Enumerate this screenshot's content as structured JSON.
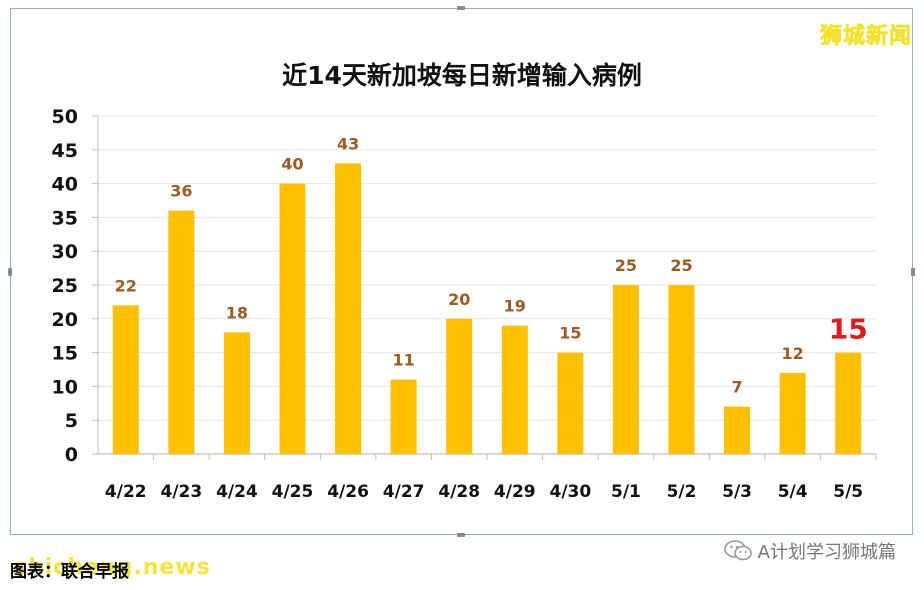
{
  "brand": "狮城新闻",
  "footer": {
    "source": "图表：联合早报",
    "watermark": "shicheng.news",
    "account": "A计划学习狮城篇",
    "account_icon": "wechat-icon"
  },
  "colors": {
    "bar": "#FFC000",
    "value_label": "#9C5B22",
    "highlight_label": "#E0191B",
    "grid": "#E6E6E6",
    "axis": "#BFBFBF",
    "frame": "#8FB7AE"
  },
  "chart_data": {
    "type": "bar",
    "title": "近14天新加坡每日新增输入病例",
    "categories": [
      "4/22",
      "4/23",
      "4/24",
      "4/25",
      "4/26",
      "4/27",
      "4/28",
      "4/29",
      "4/30",
      "5/1",
      "5/2",
      "5/3",
      "5/4",
      "5/5"
    ],
    "values": [
      22,
      36,
      18,
      40,
      43,
      11,
      20,
      19,
      15,
      25,
      25,
      7,
      12,
      15
    ],
    "ylim": [
      0,
      50
    ],
    "yticks": [
      0,
      5,
      10,
      15,
      20,
      25,
      30,
      35,
      40,
      45,
      50
    ],
    "highlight_index": 13,
    "grid": true,
    "legend": "none"
  }
}
